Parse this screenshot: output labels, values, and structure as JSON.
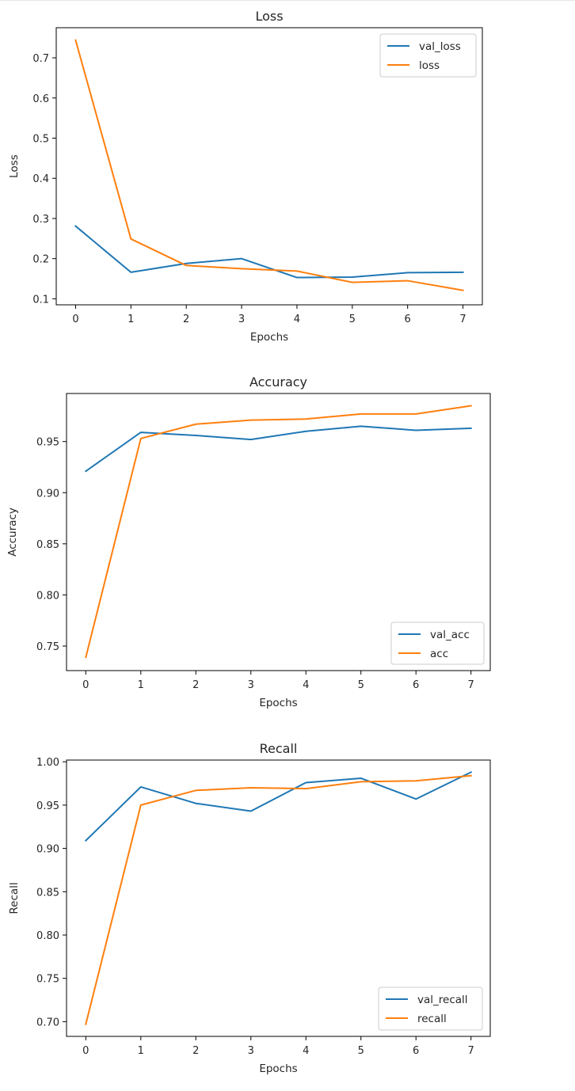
{
  "colors": {
    "blue": "#1f77b4",
    "orange": "#ff7f0e"
  },
  "chart_data": [
    {
      "type": "line",
      "title": "Loss",
      "xlabel": "Epochs",
      "ylabel": "Loss",
      "x": [
        0,
        1,
        2,
        3,
        4,
        5,
        6,
        7
      ],
      "xticks": [
        "0",
        "1",
        "2",
        "3",
        "4",
        "5",
        "6",
        "7"
      ],
      "yticks": [
        "0.1",
        "0.2",
        "0.3",
        "0.4",
        "0.5",
        "0.6",
        "0.7"
      ],
      "xlim": [
        -0.35,
        7.35
      ],
      "ylim": [
        0.085,
        0.775
      ],
      "grid": false,
      "legend": "top-right",
      "series": [
        {
          "name": "val_loss",
          "color": "#1f77b4",
          "values": [
            0.281,
            0.166,
            0.188,
            0.2,
            0.153,
            0.154,
            0.165,
            0.166
          ]
        },
        {
          "name": "loss",
          "color": "#ff7f0e",
          "values": [
            0.744,
            0.249,
            0.183,
            0.175,
            0.169,
            0.141,
            0.145,
            0.121
          ]
        }
      ]
    },
    {
      "type": "line",
      "title": "Accuracy",
      "xlabel": "Epochs",
      "ylabel": "Accuracy",
      "x": [
        0,
        1,
        2,
        3,
        4,
        5,
        6,
        7
      ],
      "xticks": [
        "0",
        "1",
        "2",
        "3",
        "4",
        "5",
        "6",
        "7"
      ],
      "yticks": [
        "0.75",
        "0.80",
        "0.85",
        "0.90",
        "0.95"
      ],
      "xlim": [
        -0.35,
        7.35
      ],
      "ylim": [
        0.726,
        0.997
      ],
      "grid": false,
      "legend": "lower-right",
      "series": [
        {
          "name": "val_acc",
          "color": "#1f77b4",
          "values": [
            0.921,
            0.959,
            0.956,
            0.952,
            0.96,
            0.965,
            0.961,
            0.963
          ]
        },
        {
          "name": "acc",
          "color": "#ff7f0e",
          "values": [
            0.739,
            0.953,
            0.967,
            0.971,
            0.972,
            0.977,
            0.977,
            0.985
          ]
        }
      ]
    },
    {
      "type": "line",
      "title": "Recall",
      "xlabel": "Epochs",
      "ylabel": "Recall",
      "x": [
        0,
        1,
        2,
        3,
        4,
        5,
        6,
        7
      ],
      "xticks": [
        "0",
        "1",
        "2",
        "3",
        "4",
        "5",
        "6",
        "7"
      ],
      "yticks": [
        "0.70",
        "0.75",
        "0.80",
        "0.85",
        "0.90",
        "0.95",
        "1.00"
      ],
      "xlim": [
        -0.35,
        7.35
      ],
      "ylim": [
        0.683,
        1.002
      ],
      "grid": false,
      "legend": "lower-right",
      "series": [
        {
          "name": "val_recall",
          "color": "#1f77b4",
          "values": [
            0.909,
            0.971,
            0.952,
            0.943,
            0.976,
            0.981,
            0.957,
            0.988
          ]
        },
        {
          "name": "recall",
          "color": "#ff7f0e",
          "values": [
            0.697,
            0.95,
            0.967,
            0.97,
            0.969,
            0.977,
            0.978,
            0.984
          ]
        }
      ]
    }
  ]
}
